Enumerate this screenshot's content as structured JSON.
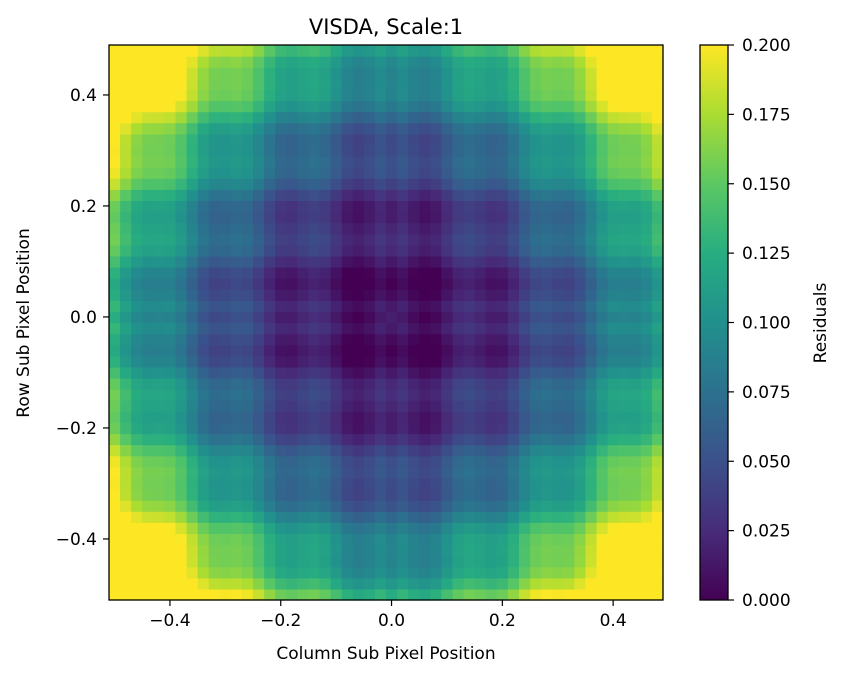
{
  "chart_data": {
    "type": "heatmap",
    "title": "VISDA, Scale:1",
    "xlabel": "Column Sub Pixel Position",
    "ylabel": "Row Sub Pixel Position",
    "xlim": [
      -0.51,
      0.49
    ],
    "ylim": [
      -0.51,
      0.49
    ],
    "x_ticks": [
      -0.4,
      -0.2,
      0.0,
      0.2,
      0.4
    ],
    "x_tick_labels": [
      "−0.4",
      "−0.2",
      "0.0",
      "0.2",
      "0.4"
    ],
    "y_ticks": [
      -0.4,
      -0.2,
      0.0,
      0.2,
      0.4
    ],
    "y_tick_labels": [
      "−0.4",
      "−0.2",
      "0.0",
      "0.2",
      "0.4"
    ],
    "grid_size": 50,
    "cell_size": 0.02,
    "grid_start": -0.51,
    "grid": false,
    "colorbar": {
      "label": "Residuals",
      "colormap": "viridis",
      "vmin": 0.0,
      "vmax": 0.2,
      "ticks": [
        0.0,
        0.025,
        0.05,
        0.075,
        0.1,
        0.125,
        0.15,
        0.175,
        0.2
      ],
      "tick_labels": [
        "0.000",
        "0.025",
        "0.050",
        "0.075",
        "0.100",
        "0.125",
        "0.150",
        "0.175",
        "0.200"
      ]
    },
    "values_description_samples": {
      "center": 0.0,
      "near_center_ring": 0.03,
      "mid_ring": 0.075,
      "edge_midpoints": 0.12,
      "corners": 0.2
    }
  }
}
